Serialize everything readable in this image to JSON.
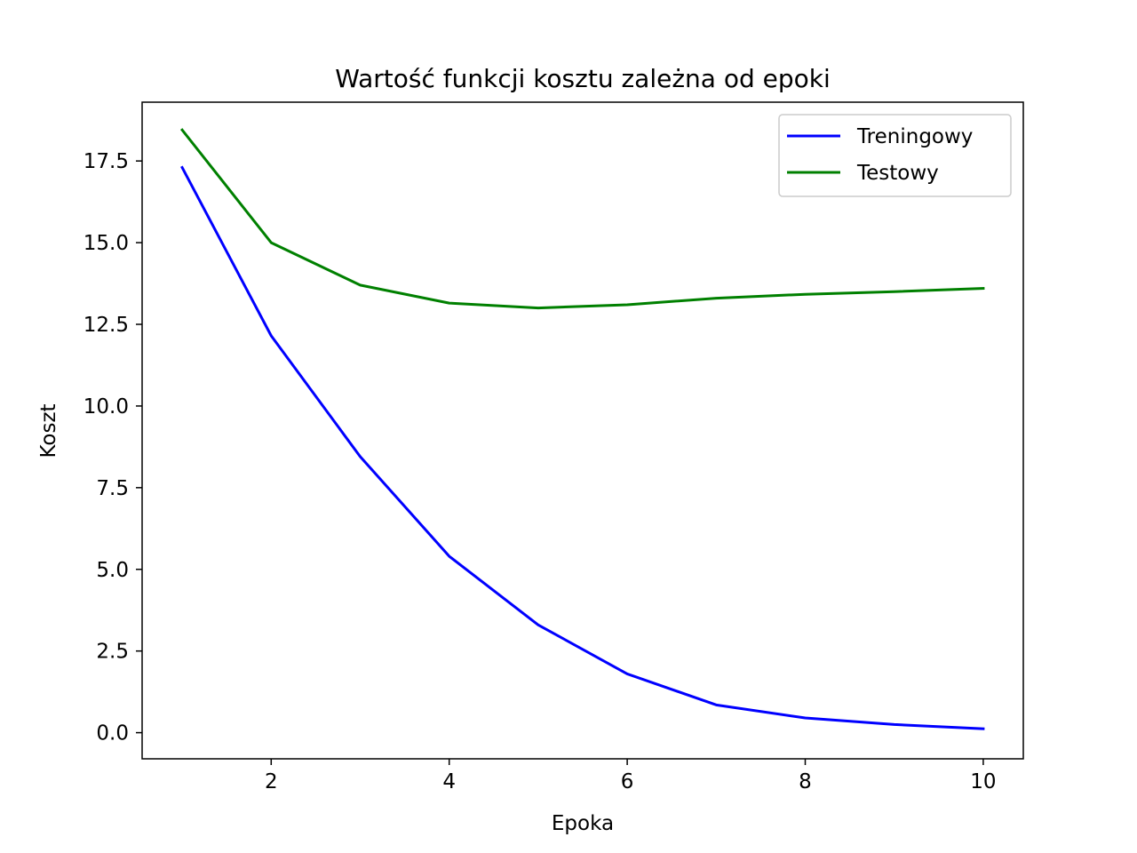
{
  "chart_data": {
    "type": "line",
    "title": "Wartość funkcji kosztu zależna od epoki",
    "xlabel": "Epoka",
    "ylabel": "Koszt",
    "x": [
      1,
      2,
      3,
      4,
      5,
      6,
      7,
      8,
      9,
      10
    ],
    "series": [
      {
        "name": "Treningowy",
        "color": "#0000ff",
        "values": [
          17.3,
          12.15,
          8.45,
          5.4,
          3.3,
          1.8,
          0.85,
          0.45,
          0.25,
          0.12
        ]
      },
      {
        "name": "Testowy",
        "color": "#008000",
        "values": [
          18.45,
          15.0,
          13.7,
          13.15,
          13.0,
          13.1,
          13.3,
          13.42,
          13.5,
          13.6
        ]
      }
    ],
    "xlim": [
      0.55,
      10.45
    ],
    "ylim": [
      -0.8,
      19.3
    ],
    "xticks": [
      2,
      4,
      6,
      8,
      10
    ],
    "xtick_labels": [
      "2",
      "4",
      "6",
      "8",
      "10"
    ],
    "yticks": [
      0,
      2.5,
      5,
      7.5,
      10,
      12.5,
      15,
      17.5
    ],
    "ytick_labels": [
      "0.0",
      "2.5",
      "5.0",
      "7.5",
      "10.0",
      "12.5",
      "15.0",
      "17.5"
    ],
    "grid": false,
    "legend_position": "top-right"
  }
}
